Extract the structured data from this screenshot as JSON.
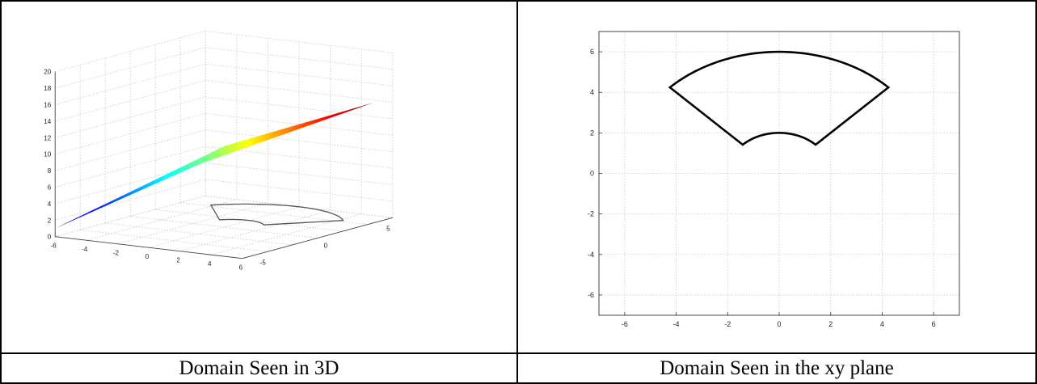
{
  "table": {
    "captions": [
      "Domain Seen in 3D",
      "Domain Seen in the xy plane"
    ]
  },
  "chart_data": [
    {
      "type": "surface3d",
      "title": "",
      "xlabel": "",
      "ylabel": "",
      "zlabel": "",
      "x_ticks": [
        "-6",
        "-4",
        "-2",
        "0",
        "2",
        "4",
        "6"
      ],
      "y_ticks": [
        "-5",
        "0",
        "5"
      ],
      "z_ticks": [
        "0",
        "2",
        "4",
        "6",
        "8",
        "10",
        "12",
        "14",
        "16",
        "18",
        "20"
      ],
      "xlim": [
        -6,
        6
      ],
      "ylim": [
        -6,
        6
      ],
      "zlim": [
        0,
        20
      ],
      "surface": {
        "description_shown": "plane z over annular-sector domain",
        "colormap": "jet",
        "z_range": [
          1,
          15
        ]
      },
      "domain_outline": {
        "inner_radius": 2,
        "outer_radius": 6,
        "angle_deg": [
          45,
          135
        ]
      },
      "grid": true
    },
    {
      "type": "line",
      "title": "",
      "xlabel": "",
      "ylabel": "",
      "x_ticks": [
        "-6",
        "-4",
        "-2",
        "0",
        "2",
        "4",
        "6"
      ],
      "y_ticks": [
        "-6",
        "-4",
        "-2",
        "0",
        "2",
        "4",
        "6"
      ],
      "xlim": [
        -7,
        7
      ],
      "ylim": [
        -7,
        7
      ],
      "grid": true,
      "series": [
        {
          "shape": "annular sector",
          "inner_radius": 2,
          "outer_radius": 6,
          "angle_deg": [
            45,
            135
          ],
          "corners": [
            [
              -4.24,
              4.24
            ],
            [
              4.24,
              4.24
            ],
            [
              1.41,
              1.41
            ],
            [
              -1.41,
              1.41
            ]
          ],
          "color": "#000000"
        }
      ]
    }
  ]
}
